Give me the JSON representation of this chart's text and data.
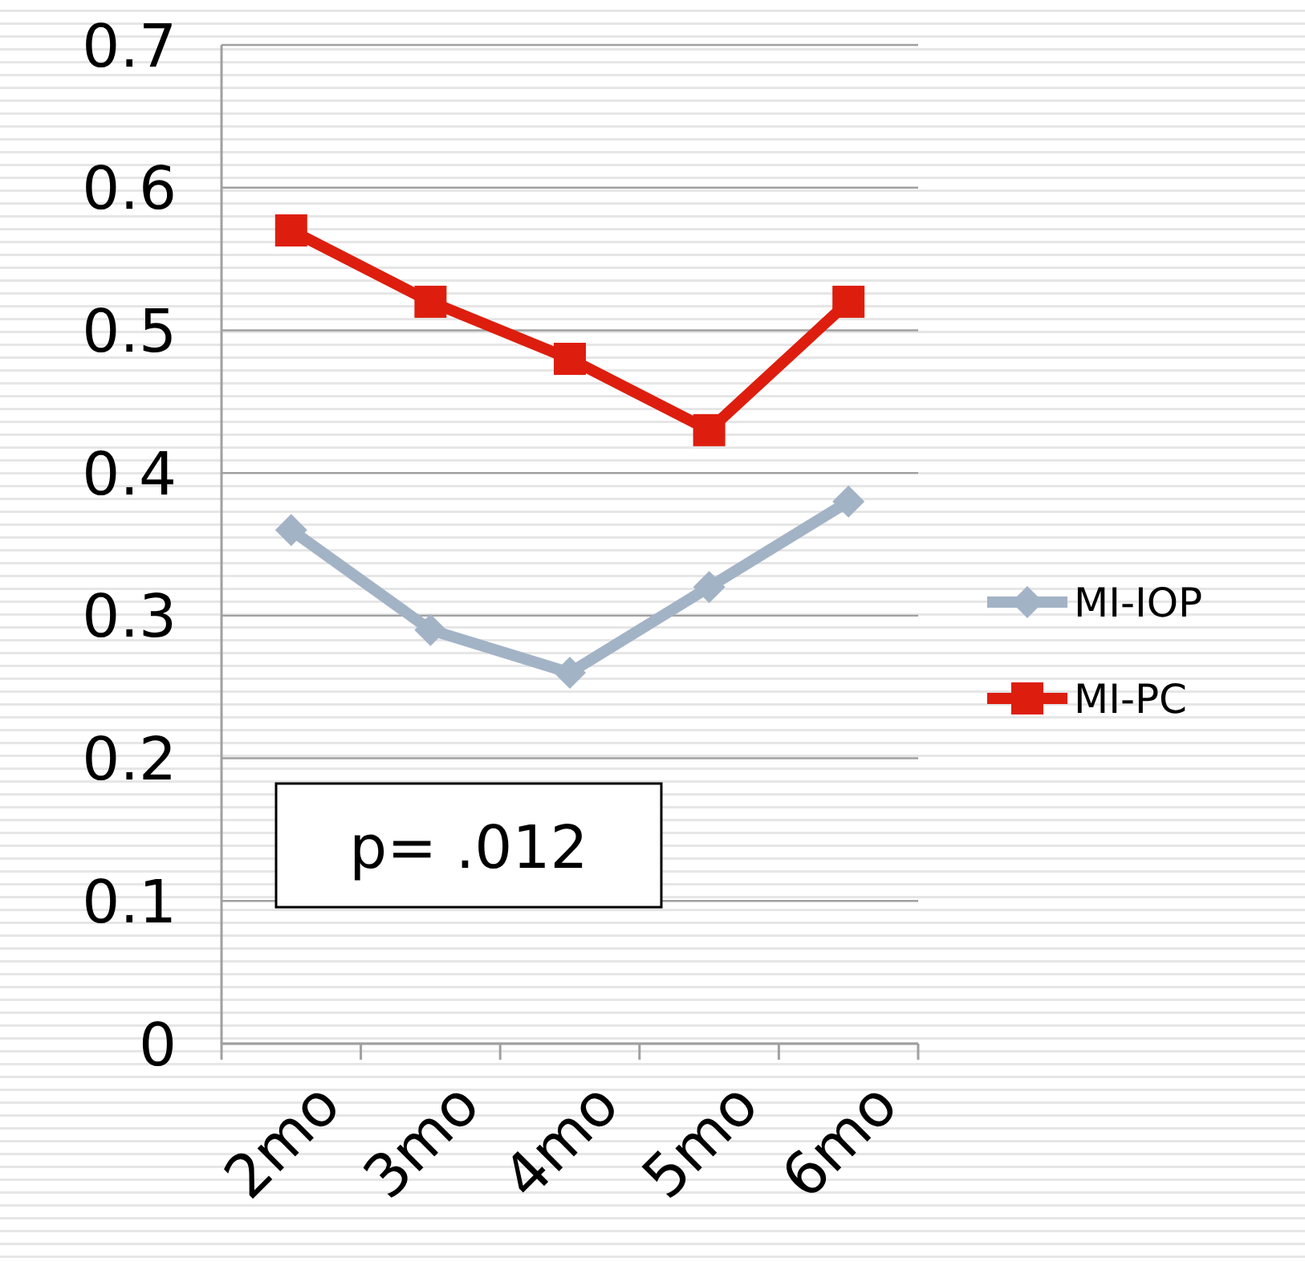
{
  "chart_data": {
    "type": "line",
    "categories": [
      "2mo",
      "3mo",
      "4mo",
      "5mo",
      "6mo"
    ],
    "series": [
      {
        "name": "MI-IOP",
        "color": "#a3b3c6",
        "marker": "diamond",
        "values": [
          0.36,
          0.29,
          0.26,
          0.32,
          0.38
        ]
      },
      {
        "name": "MI-PC",
        "color": "#dd1e0e",
        "marker": "square",
        "values": [
          0.57,
          0.52,
          0.48,
          0.43,
          0.52
        ]
      }
    ],
    "ylim": [
      0,
      0.7
    ],
    "yticks": [
      0,
      0.1,
      0.2,
      0.3,
      0.4,
      0.5,
      0.6,
      0.7
    ],
    "grid": "y",
    "legend": "right",
    "annotations": [
      "p= .012"
    ]
  }
}
